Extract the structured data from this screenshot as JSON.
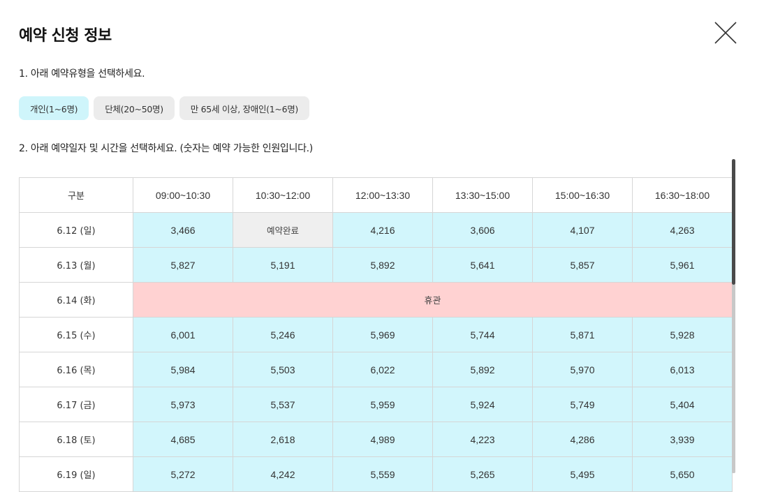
{
  "dialog": {
    "title": "예약 신청 정보",
    "step1_label": "1. 아래 예약유형을 선택하세요.",
    "step2_label": "2. 아래 예약일자 및 시간을 선택하세요. (숫자는 예약 가능한 인원입니다.)"
  },
  "reservation_types": [
    {
      "label": "개인(1~6명)",
      "selected": true
    },
    {
      "label": "단체(20~50명)",
      "selected": false
    },
    {
      "label": "만 65세 이상, 장애인(1~6명)",
      "selected": false
    }
  ],
  "schedule": {
    "corner_header": "구분",
    "time_slots": [
      "09:00~10:30",
      "10:30~12:00",
      "12:00~13:30",
      "13:30~15:00",
      "15:00~16:30",
      "16:30~18:00"
    ],
    "rows": [
      {
        "date": "6.12 (일)",
        "cells": [
          "3,466",
          "예약완료",
          "4,216",
          "3,606",
          "4,107",
          "4,263"
        ]
      },
      {
        "date": "6.13 (월)",
        "cells": [
          "5,827",
          "5,191",
          "5,892",
          "5,641",
          "5,857",
          "5,961"
        ]
      },
      {
        "date": "6.14 (화)",
        "closed": "휴관"
      },
      {
        "date": "6.15 (수)",
        "cells": [
          "6,001",
          "5,246",
          "5,969",
          "5,744",
          "5,871",
          "5,928"
        ]
      },
      {
        "date": "6.16 (목)",
        "cells": [
          "5,984",
          "5,503",
          "6,022",
          "5,892",
          "5,970",
          "6,013"
        ]
      },
      {
        "date": "6.17 (금)",
        "cells": [
          "5,973",
          "5,537",
          "5,959",
          "5,924",
          "5,749",
          "5,404"
        ]
      },
      {
        "date": "6.18 (토)",
        "cells": [
          "4,685",
          "2,618",
          "4,989",
          "4,223",
          "4,286",
          "3,939"
        ]
      },
      {
        "date": "6.19 (일)",
        "cells": [
          "5,272",
          "4,242",
          "5,559",
          "5,265",
          "5,495",
          "5,650"
        ]
      }
    ],
    "full_label": "예약완료"
  },
  "colors": {
    "available": "#d2f6fc",
    "full": "#efefef",
    "closed": "#ffd2d2",
    "selected_type": "#cff5fb"
  }
}
